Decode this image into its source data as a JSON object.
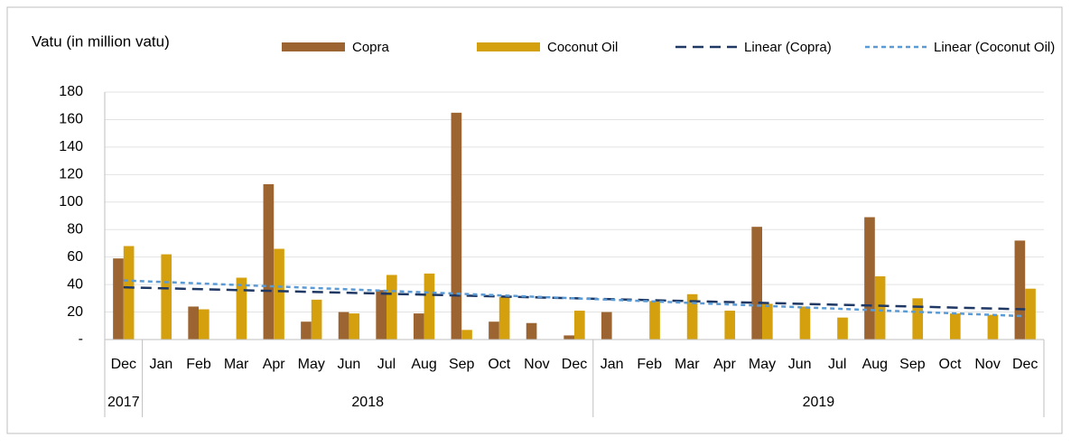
{
  "chart_data": {
    "type": "bar",
    "title": "Vatu (in million vatu)",
    "categories": [
      "Dec",
      "Jan",
      "Feb",
      "Mar",
      "Apr",
      "May",
      "Jun",
      "Jul",
      "Aug",
      "Sep",
      "Oct",
      "Nov",
      "Dec",
      "Jan",
      "Feb",
      "Mar",
      "Apr",
      "May",
      "Jun",
      "Jul",
      "Aug",
      "Sep",
      "Oct",
      "Nov",
      "Dec"
    ],
    "x_groups": [
      {
        "label": "2017",
        "count": 1
      },
      {
        "label": "2018",
        "count": 12
      },
      {
        "label": "2019",
        "count": 12
      }
    ],
    "series": [
      {
        "name": "Copra",
        "color": "#9c6430",
        "values": [
          59,
          null,
          24,
          null,
          113,
          13,
          20,
          36,
          19,
          165,
          13,
          12,
          3,
          20,
          null,
          null,
          null,
          82,
          null,
          null,
          89,
          null,
          null,
          null,
          72
        ]
      },
      {
        "name": "Coconut Oil",
        "color": "#d4a00e",
        "values": [
          68,
          62,
          22,
          45,
          66,
          29,
          19,
          47,
          48,
          7,
          31,
          null,
          21,
          null,
          28,
          33,
          21,
          26,
          24,
          16,
          46,
          30,
          19,
          18,
          37
        ]
      }
    ],
    "trendlines": [
      {
        "name": "Linear (Copra)",
        "color": "#1f3864",
        "dash": "12 7",
        "values": [
          38,
          22
        ]
      },
      {
        "name": "Linear (Coconut Oil)",
        "color": "#5b9bd5",
        "dash": "5 4",
        "values": [
          43,
          17
        ]
      }
    ],
    "ylim": [
      0,
      180
    ],
    "yticks": [
      {
        "value": 0,
        "label": "-"
      },
      20,
      40,
      60,
      80,
      100,
      120,
      140,
      160,
      180
    ],
    "grid": true
  }
}
